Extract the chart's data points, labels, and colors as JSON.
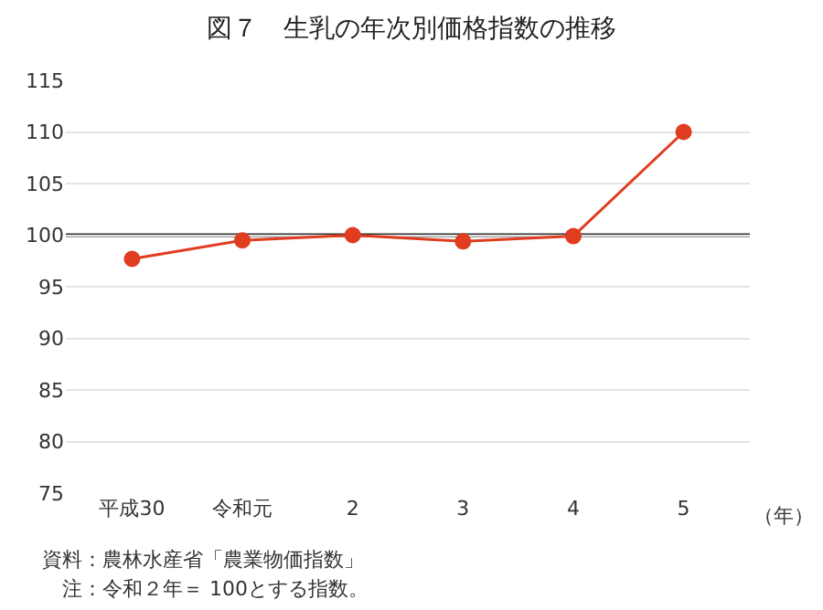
{
  "chart_data": {
    "type": "line",
    "title": "図７　生乳の年次別価格指数の推移",
    "xlabel": "（年）",
    "categories": [
      "平成30",
      "令和元",
      "2",
      "3",
      "4",
      "5"
    ],
    "series": [
      {
        "color": "#e03c1f",
        "values": [
          97.7,
          99.5,
          100,
          99.4,
          99.9,
          110
        ]
      }
    ],
    "ylim": [
      75,
      115
    ],
    "yticks": [
      75,
      80,
      85,
      90,
      95,
      100,
      105,
      110,
      115
    ],
    "grid": "y",
    "marker": "circle",
    "line_style": "solid",
    "ref_lines": [
      {
        "axis": "y",
        "value": 100,
        "color": "#333333"
      }
    ],
    "annotations": [
      "資料：農林水産省「農業物価指数」",
      "　注：令和２年＝ 100とする指数。"
    ]
  }
}
